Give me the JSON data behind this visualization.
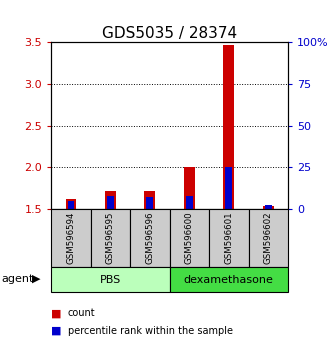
{
  "title": "GDS5035 / 28374",
  "samples": [
    "GSM596594",
    "GSM596595",
    "GSM596596",
    "GSM596600",
    "GSM596601",
    "GSM596602"
  ],
  "count_values": [
    1.62,
    1.72,
    1.72,
    2.0,
    3.47,
    1.54
  ],
  "percentile_values": [
    5.0,
    8.0,
    7.0,
    8.0,
    25.0,
    2.5
  ],
  "ylim_left": [
    1.5,
    3.5
  ],
  "ylim_right": [
    0,
    100
  ],
  "yticks_left": [
    1.5,
    2.0,
    2.5,
    3.0,
    3.5
  ],
  "yticks_right": [
    0,
    25,
    50,
    75,
    100
  ],
  "ytick_labels_right": [
    "0",
    "25",
    "50",
    "75",
    "100%"
  ],
  "count_color": "#cc0000",
  "percentile_color": "#0000cc",
  "bar_width": 0.5,
  "count_bar_bottom": 1.5,
  "sample_bg_color": "#cccccc",
  "pbs_color": "#bbffbb",
  "dex_color": "#44dd44",
  "legend_count_label": "count",
  "legend_percentile_label": "percentile rank within the sample",
  "title_fontsize": 11,
  "tick_fontsize": 8,
  "label_fontsize": 7
}
